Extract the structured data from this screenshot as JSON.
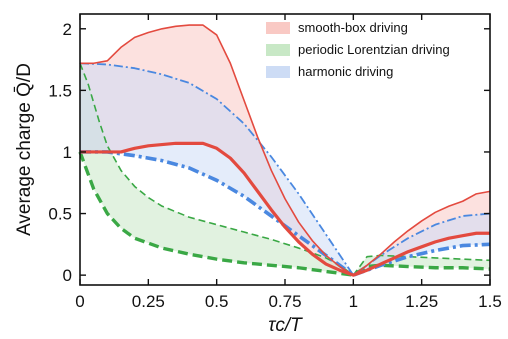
{
  "chart_data": {
    "type": "line",
    "ylabel": "Average charge Q̄/D",
    "xlabel": "τc/T",
    "xlim": [
      0,
      1.5
    ],
    "ylim": [
      -0.08,
      2.12
    ],
    "x_ticks": [
      0,
      0.25,
      0.5,
      0.75,
      1,
      1.25,
      1.5
    ],
    "x_tick_labels": [
      "0",
      "0.25",
      "0.5",
      "0.75",
      "1",
      "1.25",
      "1.5"
    ],
    "y_ticks": [
      0,
      0.5,
      1,
      1.5,
      2
    ],
    "y_tick_labels": [
      "0",
      "0.5",
      "1",
      "1.5",
      "2"
    ],
    "legend_position": "top-right",
    "legend": [
      {
        "label": "smooth-box driving",
        "color": "#f9c9c4"
      },
      {
        "label": "periodic Lorentzian driving",
        "color": "#c8e8c6"
      },
      {
        "label": "harmonic driving",
        "color": "#cddcf5"
      }
    ],
    "colors": {
      "smooth_box": "#e34a3f",
      "lorentzian": "#3aa845",
      "harmonic": "#4a88e0",
      "fill_red": "#f9c9c4",
      "fill_green": "#c8e8c6",
      "fill_blue": "#cddcf5"
    },
    "series": [
      {
        "id": "box_upper",
        "style": "solid-thin",
        "color": "#e34a3f",
        "points": [
          [
            0,
            1.72
          ],
          [
            0.05,
            1.72
          ],
          [
            0.1,
            1.74
          ],
          [
            0.15,
            1.85
          ],
          [
            0.2,
            1.93
          ],
          [
            0.25,
            1.97
          ],
          [
            0.3,
            2.0
          ],
          [
            0.35,
            2.02
          ],
          [
            0.4,
            2.03
          ],
          [
            0.45,
            2.03
          ],
          [
            0.5,
            1.95
          ],
          [
            0.55,
            1.72
          ],
          [
            0.6,
            1.42
          ],
          [
            0.65,
            1.12
          ],
          [
            0.7,
            0.85
          ],
          [
            0.75,
            0.62
          ],
          [
            0.8,
            0.43
          ],
          [
            0.85,
            0.28
          ],
          [
            0.9,
            0.16
          ],
          [
            0.95,
            0.07
          ],
          [
            1,
            0
          ],
          [
            1.05,
            0.08
          ],
          [
            1.1,
            0.17
          ],
          [
            1.15,
            0.27
          ],
          [
            1.2,
            0.36
          ],
          [
            1.25,
            0.44
          ],
          [
            1.3,
            0.51
          ],
          [
            1.35,
            0.56
          ],
          [
            1.4,
            0.6
          ],
          [
            1.45,
            0.66
          ],
          [
            1.5,
            0.68
          ]
        ]
      },
      {
        "id": "box_lower",
        "style": "solid-thick",
        "color": "#e34a3f",
        "points": [
          [
            0,
            1.0
          ],
          [
            0.05,
            1.0
          ],
          [
            0.1,
            1.0
          ],
          [
            0.15,
            1.0
          ],
          [
            0.2,
            1.03
          ],
          [
            0.25,
            1.05
          ],
          [
            0.3,
            1.06
          ],
          [
            0.35,
            1.07
          ],
          [
            0.4,
            1.07
          ],
          [
            0.45,
            1.07
          ],
          [
            0.5,
            1.03
          ],
          [
            0.55,
            0.95
          ],
          [
            0.6,
            0.83
          ],
          [
            0.65,
            0.68
          ],
          [
            0.7,
            0.53
          ],
          [
            0.75,
            0.39
          ],
          [
            0.8,
            0.27
          ],
          [
            0.85,
            0.17
          ],
          [
            0.9,
            0.09
          ],
          [
            0.95,
            0.04
          ],
          [
            1,
            0
          ],
          [
            1.05,
            0.04
          ],
          [
            1.1,
            0.09
          ],
          [
            1.15,
            0.14
          ],
          [
            1.2,
            0.19
          ],
          [
            1.25,
            0.23
          ],
          [
            1.3,
            0.27
          ],
          [
            1.35,
            0.3
          ],
          [
            1.4,
            0.32
          ],
          [
            1.45,
            0.34
          ],
          [
            1.5,
            0.34
          ]
        ]
      },
      {
        "id": "harmonic_upper",
        "style": "dashdot-thin",
        "color": "#4a88e0",
        "points": [
          [
            0,
            1.72
          ],
          [
            0.1,
            1.71
          ],
          [
            0.2,
            1.68
          ],
          [
            0.3,
            1.63
          ],
          [
            0.4,
            1.56
          ],
          [
            0.5,
            1.43
          ],
          [
            0.6,
            1.23
          ],
          [
            0.7,
            0.96
          ],
          [
            0.8,
            0.66
          ],
          [
            0.9,
            0.33
          ],
          [
            1,
            0
          ],
          [
            1.1,
            0.16
          ],
          [
            1.2,
            0.3
          ],
          [
            1.3,
            0.41
          ],
          [
            1.4,
            0.48
          ],
          [
            1.5,
            0.5
          ]
        ]
      },
      {
        "id": "harmonic_lower",
        "style": "dashdot-thick",
        "color": "#4a88e0",
        "points": [
          [
            0,
            1.0
          ],
          [
            0.1,
            1.0
          ],
          [
            0.2,
            0.97
          ],
          [
            0.3,
            0.93
          ],
          [
            0.4,
            0.87
          ],
          [
            0.5,
            0.77
          ],
          [
            0.6,
            0.64
          ],
          [
            0.7,
            0.48
          ],
          [
            0.8,
            0.32
          ],
          [
            0.9,
            0.16
          ],
          [
            1,
            0
          ],
          [
            1.1,
            0.08
          ],
          [
            1.2,
            0.15
          ],
          [
            1.3,
            0.2
          ],
          [
            1.4,
            0.24
          ],
          [
            1.5,
            0.25
          ]
        ]
      },
      {
        "id": "lorentzian_upper",
        "style": "dashed-thin",
        "color": "#3aa845",
        "points": [
          [
            0,
            1.72
          ],
          [
            0.03,
            1.55
          ],
          [
            0.07,
            1.25
          ],
          [
            0.1,
            1.05
          ],
          [
            0.15,
            0.85
          ],
          [
            0.2,
            0.72
          ],
          [
            0.25,
            0.63
          ],
          [
            0.3,
            0.56
          ],
          [
            0.4,
            0.47
          ],
          [
            0.5,
            0.41
          ],
          [
            0.6,
            0.35
          ],
          [
            0.7,
            0.29
          ],
          [
            0.8,
            0.22
          ],
          [
            0.9,
            0.14
          ],
          [
            0.95,
            0.08
          ],
          [
            1,
            0
          ],
          [
            1.05,
            0.15
          ],
          [
            1.1,
            0.16
          ],
          [
            1.2,
            0.15
          ],
          [
            1.3,
            0.14
          ],
          [
            1.4,
            0.13
          ],
          [
            1.5,
            0.12
          ]
        ]
      },
      {
        "id": "lorentzian_lower",
        "style": "dashed-thick",
        "color": "#3aa845",
        "points": [
          [
            0,
            1.0
          ],
          [
            0.05,
            0.7
          ],
          [
            0.1,
            0.5
          ],
          [
            0.15,
            0.38
          ],
          [
            0.2,
            0.3
          ],
          [
            0.3,
            0.22
          ],
          [
            0.4,
            0.17
          ],
          [
            0.5,
            0.13
          ],
          [
            0.6,
            0.1
          ],
          [
            0.7,
            0.08
          ],
          [
            0.8,
            0.06
          ],
          [
            0.9,
            0.03
          ],
          [
            1,
            0
          ],
          [
            1.05,
            0.07
          ],
          [
            1.1,
            0.08
          ],
          [
            1.2,
            0.07
          ],
          [
            1.3,
            0.06
          ],
          [
            1.4,
            0.06
          ],
          [
            1.5,
            0.05
          ]
        ]
      }
    ]
  }
}
